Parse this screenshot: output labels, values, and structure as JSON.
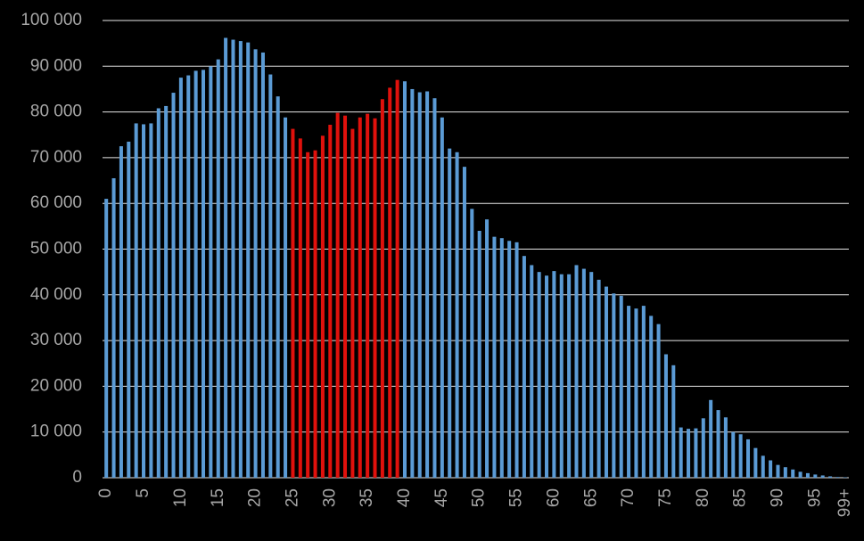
{
  "chart_data": {
    "type": "bar",
    "categories": [
      "0",
      null,
      null,
      null,
      null,
      "5",
      null,
      null,
      null,
      null,
      "10",
      null,
      null,
      null,
      null,
      "15",
      null,
      null,
      null,
      null,
      "20",
      null,
      null,
      null,
      null,
      "25",
      null,
      null,
      null,
      null,
      "30",
      null,
      null,
      null,
      null,
      "35",
      null,
      null,
      null,
      null,
      "40",
      null,
      null,
      null,
      null,
      "45",
      null,
      null,
      null,
      null,
      "50",
      null,
      null,
      null,
      null,
      "55",
      null,
      null,
      null,
      null,
      "60",
      null,
      null,
      null,
      null,
      "65",
      null,
      null,
      null,
      null,
      "70",
      null,
      null,
      null,
      null,
      "75",
      null,
      null,
      null,
      null,
      "80",
      null,
      null,
      null,
      null,
      "85",
      null,
      null,
      null,
      null,
      "90",
      null,
      null,
      null,
      null,
      "95",
      null,
      null,
      null,
      "99+"
    ],
    "values": [
      61000,
      65500,
      72500,
      73500,
      77500,
      77300,
      77500,
      80800,
      81300,
      84200,
      87500,
      88000,
      89000,
      89200,
      90000,
      91500,
      96200,
      95800,
      95500,
      95200,
      93700,
      93000,
      88200,
      83400,
      78800,
      76300,
      74200,
      71200,
      71600,
      74800,
      77200,
      79800,
      79200,
      76300,
      78800,
      79600,
      78600,
      82800,
      85300,
      87000,
      86700,
      85000,
      84300,
      84500,
      83000,
      78800,
      72000,
      71200,
      68000,
      58800,
      54000,
      56500,
      52700,
      52400,
      51800,
      51500,
      48500,
      46500,
      45000,
      44200,
      45200,
      44500,
      44500,
      46500,
      45700,
      45000,
      43300,
      41800,
      40300,
      39800,
      37600,
      37000,
      37600,
      35400,
      33600,
      27000,
      24600,
      11000,
      10700,
      10800,
      13000,
      17000,
      14800,
      13200,
      10000,
      9500,
      8400,
      6500,
      4800,
      3800,
      2800,
      2300,
      1800,
      1300,
      1000,
      700,
      500,
      300,
      150,
      100
    ],
    "colors": [
      "#5b9bd5",
      "#5b9bd5",
      "#5b9bd5",
      "#5b9bd5",
      "#5b9bd5",
      "#5b9bd5",
      "#5b9bd5",
      "#5b9bd5",
      "#5b9bd5",
      "#5b9bd5",
      "#5b9bd5",
      "#5b9bd5",
      "#5b9bd5",
      "#5b9bd5",
      "#5b9bd5",
      "#5b9bd5",
      "#5b9bd5",
      "#5b9bd5",
      "#5b9bd5",
      "#5b9bd5",
      "#5b9bd5",
      "#5b9bd5",
      "#5b9bd5",
      "#5b9bd5",
      "#5b9bd5",
      "#e0110c",
      "#e0110c",
      "#e0110c",
      "#e0110c",
      "#e0110c",
      "#e0110c",
      "#e0110c",
      "#e0110c",
      "#e0110c",
      "#e0110c",
      "#e0110c",
      "#e0110c",
      "#e0110c",
      "#e0110c",
      "#e0110c",
      "#5b9bd5",
      "#5b9bd5",
      "#5b9bd5",
      "#5b9bd5",
      "#5b9bd5",
      "#5b9bd5",
      "#5b9bd5",
      "#5b9bd5",
      "#5b9bd5",
      "#5b9bd5",
      "#5b9bd5",
      "#5b9bd5",
      "#5b9bd5",
      "#5b9bd5",
      "#5b9bd5",
      "#5b9bd5",
      "#5b9bd5",
      "#5b9bd5",
      "#5b9bd5",
      "#5b9bd5",
      "#5b9bd5",
      "#5b9bd5",
      "#5b9bd5",
      "#5b9bd5",
      "#5b9bd5",
      "#5b9bd5",
      "#5b9bd5",
      "#5b9bd5",
      "#5b9bd5",
      "#5b9bd5",
      "#5b9bd5",
      "#5b9bd5",
      "#5b9bd5",
      "#5b9bd5",
      "#5b9bd5",
      "#5b9bd5",
      "#5b9bd5",
      "#5b9bd5",
      "#5b9bd5",
      "#5b9bd5",
      "#5b9bd5",
      "#5b9bd5",
      "#5b9bd5",
      "#5b9bd5",
      "#5b9bd5",
      "#5b9bd5",
      "#5b9bd5",
      "#5b9bd5",
      "#5b9bd5",
      "#5b9bd5",
      "#5b9bd5",
      "#5b9bd5",
      "#5b9bd5",
      "#5b9bd5",
      "#5b9bd5",
      "#5b9bd5",
      "#5b9bd5",
      "#5b9bd5",
      "#5b9bd5",
      "#5b9bd5"
    ],
    "ylim": [
      0,
      100000
    ],
    "yticks": [
      0,
      {
        "value": 10000,
        "label": "10 000"
      },
      {
        "value": 20000,
        "label": "20 000"
      },
      {
        "value": 30000,
        "label": "30 000"
      },
      {
        "value": 40000,
        "label": "40 000"
      },
      {
        "value": 50000,
        "label": "50 000"
      },
      {
        "value": 60000,
        "label": "60 000"
      },
      {
        "value": 70000,
        "label": "70 000"
      },
      {
        "value": 80000,
        "label": "80 000"
      },
      {
        "value": 90000,
        "label": "90 000"
      },
      {
        "value": 100000,
        "label": "100 000"
      }
    ],
    "grid": true
  }
}
